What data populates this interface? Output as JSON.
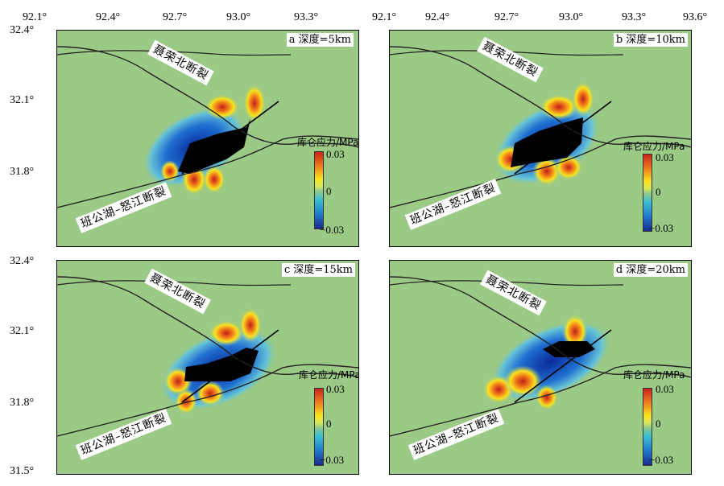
{
  "x_ticks": [
    "92.1°",
    "92.4°",
    "92.7°",
    "93.0°",
    "93.3°",
    "93.6°"
  ],
  "y_ticks": [
    "32.4°",
    "32.1°",
    "31.8°",
    "31.5°"
  ],
  "fault_north": "聂荣北断裂",
  "fault_south": "班公湖–怒江断裂",
  "colorbar": {
    "title": "库仑应力/MPa",
    "max": "0.03",
    "mid": "0",
    "min": "−0.03"
  },
  "panels": [
    {
      "label": "a  深度=5km"
    },
    {
      "label": "b  深度=10km"
    },
    {
      "label": "c  深度=15km"
    },
    {
      "label": "d  深度=20km"
    }
  ],
  "colors": {
    "background": "#9bc986",
    "positive": "#d83a1f",
    "negative": "#1f56c0",
    "rupture": "#000000"
  }
}
